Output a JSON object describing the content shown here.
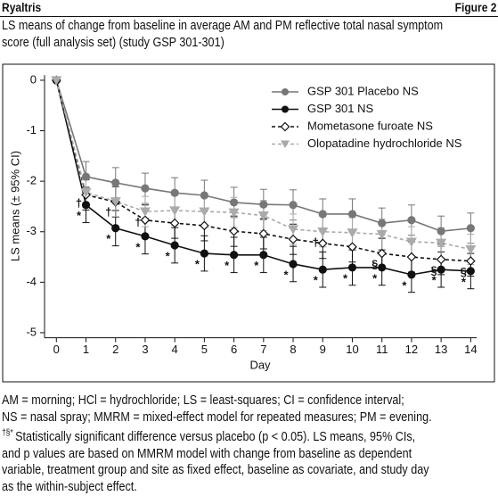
{
  "header": {
    "brand": "Ryaltris",
    "figure": "Figure 2"
  },
  "title_lines": [
    "LS means of change from baseline in average AM and PM reflective total nasal symptom",
    "score (full analysis set) (study GSP 301-301)"
  ],
  "chart_data": {
    "type": "line",
    "xlabel": "Day",
    "ylabel": "LS means (± 95% CI)",
    "x": [
      0,
      1,
      2,
      3,
      4,
      5,
      6,
      7,
      8,
      9,
      10,
      11,
      12,
      13,
      14
    ],
    "xlim": [
      -0.4,
      14.2
    ],
    "xticks": [
      0,
      1,
      2,
      3,
      4,
      5,
      6,
      7,
      8,
      9,
      10,
      11,
      12,
      13,
      14
    ],
    "ylim": [
      -5.1,
      0.1
    ],
    "yticks": [
      0,
      -1,
      -2,
      -3,
      -4,
      -5
    ],
    "legend": "upper right",
    "series": [
      {
        "name": "GSP 301 Placebo NS",
        "color": "#777777",
        "marker": "circle",
        "dashed": false,
        "values": [
          0,
          -1.91,
          -2.03,
          -2.14,
          -2.23,
          -2.28,
          -2.42,
          -2.46,
          -2.47,
          -2.65,
          -2.65,
          -2.83,
          -2.77,
          -2.99,
          -2.93
        ],
        "errors": [
          null,
          0.3,
          0.3,
          0.3,
          0.3,
          0.3,
          0.3,
          0.3,
          0.3,
          0.3,
          0.3,
          0.3,
          0.3,
          0.3,
          0.3
        ]
      },
      {
        "name": "GSP 301 NS",
        "color": "#111111",
        "marker": "circle",
        "dashed": false,
        "values": [
          0,
          -2.47,
          -2.93,
          -3.09,
          -3.27,
          -3.43,
          -3.46,
          -3.46,
          -3.64,
          -3.75,
          -3.71,
          -3.71,
          -3.85,
          -3.75,
          -3.78
        ],
        "errors": [
          null,
          0.35,
          0.35,
          0.35,
          0.35,
          0.35,
          0.35,
          0.35,
          0.35,
          0.35,
          0.35,
          0.35,
          0.35,
          0.35,
          0.35
        ],
        "markers": [
          null,
          "*",
          "*",
          "*",
          "*",
          "*",
          "*",
          "*",
          "*",
          "*",
          "*",
          "*",
          "*",
          "*",
          "*"
        ]
      },
      {
        "name": "Mometasone furoate NS",
        "color": "#111111",
        "marker": "diamond",
        "dashed": true,
        "values": [
          0,
          -2.27,
          -2.41,
          -2.77,
          -2.83,
          -2.88,
          -2.99,
          -3.04,
          -3.15,
          -3.23,
          -3.3,
          -3.43,
          -3.5,
          -3.55,
          -3.58
        ],
        "errors": [
          null,
          0.3,
          0.3,
          0.3,
          0.3,
          0.3,
          0.3,
          0.3,
          0.3,
          0.3,
          0.3,
          0.3,
          0.3,
          0.3,
          0.3
        ],
        "markers": [
          null,
          null,
          null,
          null,
          null,
          null,
          null,
          null,
          null,
          null,
          null,
          "§",
          null,
          "§",
          "§"
        ]
      },
      {
        "name": "Olopatadine hydrochloride NS",
        "color": "#aaaaaa",
        "marker": "triangle",
        "dashed": true,
        "values": [
          0,
          -2.22,
          -2.4,
          -2.6,
          -2.58,
          -2.6,
          -2.62,
          -2.68,
          -2.95,
          -3.0,
          -3.02,
          -3.05,
          -3.2,
          -3.22,
          -3.35
        ],
        "errors": [
          null,
          0.3,
          0.3,
          0.3,
          0.3,
          0.3,
          0.3,
          0.3,
          0.3,
          0.3,
          0.3,
          0.3,
          0.3,
          0.3,
          0.3
        ],
        "markers": [
          null,
          "†",
          "†",
          "†",
          null,
          null,
          null,
          null,
          null,
          "†",
          null,
          null,
          null,
          null,
          null
        ]
      }
    ]
  },
  "footnote": {
    "symbols": "†§*",
    "lines": [
      "AM = morning; HCl = hydrochloride; LS = least-squares; CI = confidence interval;",
      "NS = nasal spray; MMRM = mixed-effect model for repeated measures; PM = evening.",
      "Statistically significant difference versus placebo (p < 0.05). LS means, 95% CIs,",
      "and p values are based on MMRM model with change from baseline as dependent",
      "variable, treatment group and site as fixed effect, baseline as covariate, and study day",
      "as the within-subject effect."
    ]
  }
}
